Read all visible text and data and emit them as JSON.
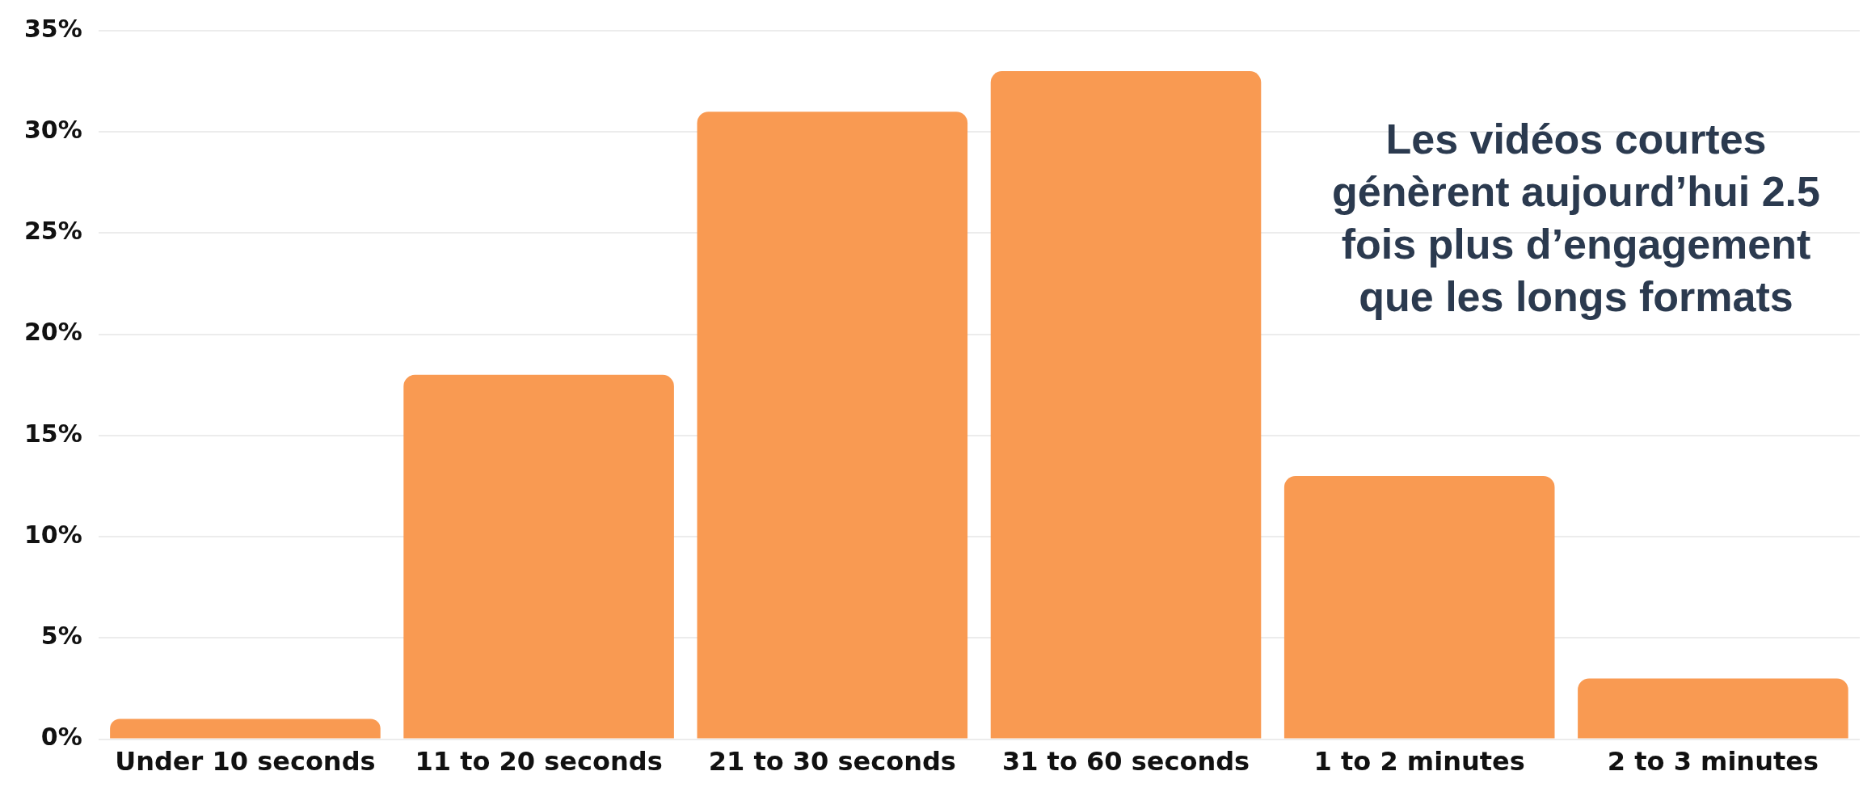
{
  "chart_data": {
    "type": "bar",
    "categories": [
      "Under 10 seconds",
      "11 to 20 seconds",
      "21 to 30 seconds",
      "31 to 60 seconds",
      "1 to 2 minutes",
      "2 to 3 minutes"
    ],
    "values": [
      1,
      18,
      31,
      33,
      13,
      3
    ],
    "color": "#f99a52",
    "ylim": [
      0,
      35
    ],
    "yticks": [
      {
        "value": 0,
        "label": "0%"
      },
      {
        "value": 5,
        "label": "5%"
      },
      {
        "value": 10,
        "label": "10%"
      },
      {
        "value": 15,
        "label": "15%"
      },
      {
        "value": 20,
        "label": "20%"
      },
      {
        "value": 25,
        "label": "25%"
      },
      {
        "value": 30,
        "label": "30%"
      },
      {
        "value": 35,
        "label": "35%"
      }
    ],
    "grid": "y",
    "legend": false,
    "annotations": [
      "Les vidéos courtes génèrent aujourd’hui 2.5 fois plus d’engagement que les longs formats"
    ]
  }
}
